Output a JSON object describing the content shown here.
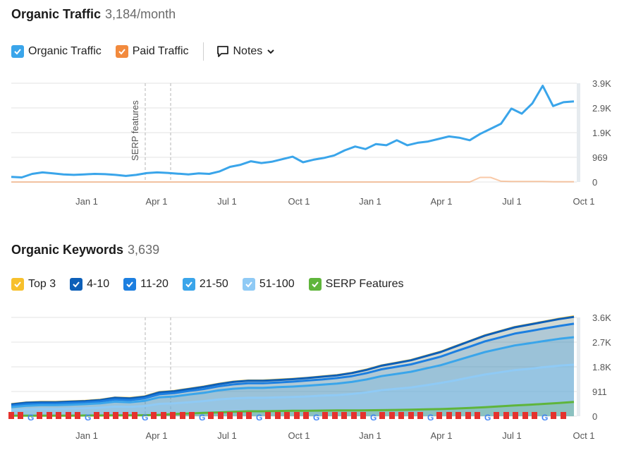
{
  "traffic": {
    "title": "Organic Traffic",
    "value": "3,184/month",
    "legend": [
      {
        "label": "Organic Traffic",
        "color": "#3aa5ea"
      },
      {
        "label": "Paid Traffic",
        "color": "#f28a3d"
      }
    ],
    "notes_label": "Notes"
  },
  "keywords": {
    "title": "Organic Keywords",
    "value": "3,639",
    "legend": [
      {
        "label": "Top 3",
        "color": "#f7c02c"
      },
      {
        "label": "4-10",
        "color": "#0d5fb8"
      },
      {
        "label": "11-20",
        "color": "#1d7fe0"
      },
      {
        "label": "21-50",
        "color": "#3aa5ea"
      },
      {
        "label": "51-100",
        "color": "#8fcaf5"
      },
      {
        "label": "SERP Features",
        "color": "#5fb53b"
      }
    ]
  },
  "chart_data": [
    {
      "type": "line",
      "x_ticks": [
        "Jan 1",
        "Apr 1",
        "Jul 1",
        "Oct 1",
        "Jan 1",
        "Apr 1",
        "Jul 1",
        "Oct 1"
      ],
      "y_ticks": [
        "3.9K",
        "2.9K",
        "1.9K",
        "969",
        "0"
      ],
      "ylim": [
        0,
        3900
      ],
      "annotation": "SERP features",
      "series": [
        {
          "name": "Organic Traffic",
          "color": "#3aa5ea",
          "values": [
            200,
            180,
            320,
            380,
            340,
            300,
            280,
            300,
            320,
            310,
            280,
            240,
            280,
            350,
            380,
            360,
            330,
            300,
            340,
            320,
            420,
            600,
            680,
            820,
            750,
            800,
            900,
            1000,
            780,
            880,
            950,
            1050,
            1250,
            1400,
            1300,
            1500,
            1450,
            1650,
            1450,
            1550,
            1600,
            1700,
            1800,
            1750,
            1650,
            1900,
            2100,
            2300,
            2900,
            2700,
            3100,
            3800,
            3000,
            3150,
            3184
          ]
        },
        {
          "name": "Paid Traffic",
          "color": "#f28a3d",
          "values": [
            0,
            0,
            0,
            0,
            0,
            0,
            0,
            0,
            0,
            0,
            0,
            0,
            0,
            0,
            0,
            0,
            0,
            0,
            0,
            0,
            0,
            0,
            0,
            0,
            0,
            0,
            0,
            0,
            0,
            0,
            0,
            0,
            0,
            0,
            0,
            0,
            0,
            0,
            0,
            0,
            0,
            0,
            0,
            0,
            0,
            180,
            180,
            30,
            20,
            20,
            20,
            20,
            10,
            10,
            10
          ]
        }
      ]
    },
    {
      "type": "area",
      "x_ticks": [
        "Jan 1",
        "Apr 1",
        "Jul 1",
        "Oct 1",
        "Jan 1",
        "Apr 1",
        "Jul 1",
        "Oct 1"
      ],
      "y_ticks": [
        "3.6K",
        "2.7K",
        "1.8K",
        "911",
        "0"
      ],
      "ylim": [
        0,
        3600
      ],
      "series": [
        {
          "name": "Top 3",
          "color": "#f7c02c",
          "values": [
            440,
            500,
            520,
            520,
            540,
            560,
            600,
            680,
            660,
            720,
            880,
            920,
            1000,
            1080,
            1180,
            1260,
            1300,
            1300,
            1330,
            1360,
            1400,
            1450,
            1500,
            1580,
            1700,
            1850,
            1950,
            2050,
            2200,
            2350,
            2550,
            2750,
            2950,
            3100,
            3250,
            3350,
            3450,
            3550,
            3639
          ]
        },
        {
          "name": "4-10",
          "color": "#0d5fb8",
          "values": [
            430,
            490,
            510,
            510,
            530,
            550,
            590,
            670,
            650,
            710,
            870,
            910,
            990,
            1070,
            1170,
            1250,
            1290,
            1290,
            1320,
            1350,
            1390,
            1440,
            1490,
            1570,
            1690,
            1840,
            1940,
            2040,
            2190,
            2340,
            2540,
            2740,
            2940,
            3090,
            3240,
            3340,
            3440,
            3540,
            3620
          ]
        },
        {
          "name": "11-20",
          "color": "#1d7fe0",
          "values": [
            380,
            440,
            460,
            460,
            480,
            500,
            540,
            610,
            590,
            650,
            800,
            840,
            920,
            990,
            1090,
            1160,
            1200,
            1200,
            1230,
            1260,
            1300,
            1340,
            1390,
            1460,
            1570,
            1710,
            1800,
            1890,
            2030,
            2170,
            2360,
            2540,
            2730,
            2870,
            3010,
            3100,
            3200,
            3290,
            3370
          ]
        },
        {
          "name": "21-50",
          "color": "#3aa5ea",
          "values": [
            330,
            380,
            400,
            400,
            420,
            440,
            470,
            530,
            510,
            560,
            690,
            720,
            790,
            850,
            940,
            1000,
            1030,
            1030,
            1060,
            1080,
            1110,
            1150,
            1190,
            1250,
            1340,
            1460,
            1540,
            1620,
            1740,
            1860,
            2020,
            2180,
            2340,
            2460,
            2580,
            2660,
            2740,
            2820,
            2880
          ]
        },
        {
          "name": "51-100",
          "color": "#8fcaf5",
          "values": [
            220,
            250,
            265,
            265,
            280,
            290,
            310,
            350,
            340,
            370,
            450,
            470,
            510,
            550,
            610,
            650,
            670,
            670,
            690,
            700,
            720,
            750,
            770,
            810,
            870,
            950,
            1000,
            1050,
            1130,
            1210,
            1310,
            1420,
            1520,
            1600,
            1680,
            1730,
            1790,
            1840,
            1880
          ]
        },
        {
          "name": "SERP Features",
          "color": "#5fb53b",
          "values": [
            20,
            20,
            20,
            20,
            20,
            25,
            25,
            30,
            30,
            35,
            50,
            80,
            100,
            120,
            140,
            160,
            180,
            180,
            190,
            200,
            200,
            205,
            210,
            210,
            215,
            220,
            230,
            240,
            250,
            260,
            280,
            300,
            330,
            360,
            390,
            420,
            450,
            480,
            520
          ]
        }
      ]
    }
  ]
}
